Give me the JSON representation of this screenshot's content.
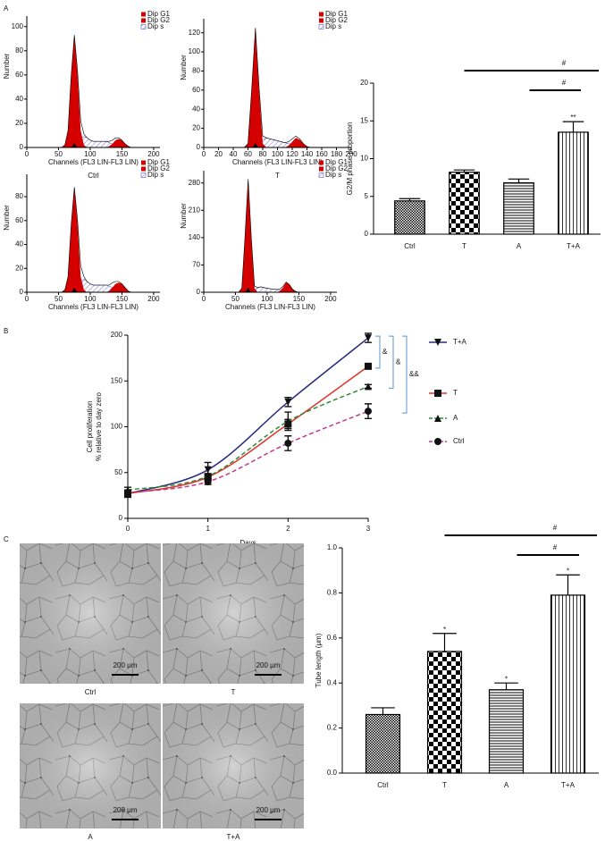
{
  "panel_labels": [
    "A",
    "B",
    "C"
  ],
  "chart_data": [
    {
      "type": "flow_histogram",
      "label": "Ctrl",
      "x_label": "Channels (FL3 LIN-FL3 LIN)",
      "y_label": "Number",
      "x": [
        40,
        45,
        50,
        55,
        60,
        65,
        70,
        75,
        80,
        85,
        90,
        95,
        100,
        105,
        110,
        115,
        120,
        125,
        130,
        135,
        140,
        145,
        150,
        155,
        160,
        165,
        170,
        175,
        180
      ],
      "series": [
        {
          "name": "Dip G1",
          "color": "#d40000",
          "values": [
            0,
            0,
            0,
            0,
            2,
            14,
            60,
            93,
            60,
            14,
            2,
            0,
            0,
            0,
            0,
            0,
            0,
            0,
            0,
            0,
            0,
            0,
            0,
            0,
            0,
            0,
            0,
            0,
            0
          ]
        },
        {
          "name": "Dip G2",
          "color": "#d40000",
          "values": [
            0,
            0,
            0,
            0,
            0,
            0,
            0,
            0,
            0,
            0,
            0,
            0,
            0,
            0,
            0,
            0,
            0,
            0,
            1,
            3,
            6,
            7,
            6,
            3,
            1,
            0,
            0,
            0,
            0
          ]
        },
        {
          "name": "Dip s",
          "color": "#3c3ccf",
          "fill": "hatch",
          "values": [
            0,
            0,
            0,
            0,
            0,
            0,
            0,
            0,
            3,
            8,
            9,
            8,
            6,
            5,
            5,
            5,
            5,
            5,
            4,
            3,
            2,
            1,
            0,
            0,
            0,
            0,
            0,
            0,
            0
          ]
        }
      ],
      "xlim": [
        0,
        210
      ],
      "xticks": [
        0,
        50,
        100,
        150,
        200
      ],
      "ylim": [
        0,
        105
      ],
      "yticks": [
        0,
        20,
        40,
        60,
        80,
        100
      ]
    },
    {
      "type": "flow_histogram",
      "label": "T",
      "x_label": "Channels (FL3 LIN-FL3 LIN)",
      "y_label": "Number",
      "x": [
        40,
        45,
        50,
        55,
        60,
        65,
        70,
        75,
        80,
        85,
        90,
        95,
        100,
        105,
        110,
        115,
        120,
        125,
        130,
        135,
        140,
        145,
        150,
        155,
        160,
        165,
        170,
        175,
        180
      ],
      "series": [
        {
          "name": "Dip G1",
          "color": "#d40000",
          "values": [
            0,
            0,
            0,
            0,
            4,
            60,
            125,
            60,
            4,
            0,
            0,
            0,
            0,
            0,
            0,
            0,
            0,
            0,
            0,
            0,
            0,
            0,
            0,
            0,
            0,
            0,
            0,
            0,
            0
          ]
        },
        {
          "name": "Dip G2",
          "color": "#d40000",
          "values": [
            0,
            0,
            0,
            0,
            0,
            0,
            0,
            0,
            0,
            0,
            0,
            0,
            0,
            0,
            0,
            2,
            6,
            10,
            8,
            4,
            1,
            0,
            0,
            0,
            0,
            0,
            0,
            0,
            0
          ]
        },
        {
          "name": "Dip s",
          "color": "#3c3ccf",
          "fill": "hatch",
          "values": [
            0,
            0,
            0,
            0,
            0,
            0,
            0,
            3,
            8,
            10,
            9,
            8,
            7,
            6,
            5,
            4,
            3,
            2,
            1,
            0,
            0,
            0,
            0,
            0,
            0,
            0,
            0,
            0,
            0
          ]
        }
      ],
      "xlim": [
        0,
        200
      ],
      "xticks": [
        0,
        20,
        40,
        60,
        80,
        100,
        120,
        140,
        160,
        180,
        200
      ],
      "ylim": [
        0,
        130
      ],
      "yticks": [
        0,
        20,
        40,
        60,
        80,
        100,
        120
      ]
    },
    {
      "type": "flow_histogram",
      "x_label": "Channels (FL3 LIN-FL3 LIN)",
      "y_label": "Number",
      "x": [
        40,
        45,
        50,
        55,
        60,
        65,
        70,
        75,
        80,
        85,
        90,
        95,
        100,
        105,
        110,
        115,
        120,
        125,
        130,
        135,
        140,
        145,
        150,
        155,
        160,
        165,
        170,
        175,
        180
      ],
      "series": [
        {
          "name": "Dip G1",
          "color": "#d40000",
          "values": [
            0,
            0,
            0,
            0,
            2,
            13,
            57,
            88,
            57,
            13,
            2,
            0,
            0,
            0,
            0,
            0,
            0,
            0,
            0,
            0,
            0,
            0,
            0,
            0,
            0,
            0,
            0,
            0,
            0
          ]
        },
        {
          "name": "Dip G2",
          "color": "#d40000",
          "values": [
            0,
            0,
            0,
            0,
            0,
            0,
            0,
            0,
            0,
            0,
            0,
            0,
            0,
            0,
            0,
            0,
            0,
            0,
            1,
            4,
            7,
            8,
            7,
            4,
            1,
            0,
            0,
            0,
            0
          ]
        },
        {
          "name": "Dip s",
          "color": "#3c3ccf",
          "fill": "hatch",
          "values": [
            0,
            0,
            0,
            0,
            0,
            0,
            0,
            0,
            3,
            9,
            11,
            9,
            7,
            6,
            6,
            6,
            6,
            6,
            5,
            4,
            2,
            1,
            0,
            0,
            0,
            0,
            0,
            0,
            0
          ]
        }
      ],
      "xlim": [
        0,
        210
      ],
      "xticks": [
        0,
        50,
        100,
        150,
        200
      ],
      "ylim": [
        0,
        95
      ],
      "yticks": [
        0,
        20,
        40,
        60,
        80
      ]
    },
    {
      "type": "flow_histogram",
      "x_label": "Channels (FL3 LIN-FL3 LIN)",
      "y_label": "Number",
      "x": [
        40,
        45,
        50,
        55,
        60,
        65,
        70,
        75,
        80,
        85,
        90,
        95,
        100,
        105,
        110,
        115,
        120,
        125,
        130,
        135,
        140,
        145,
        150,
        155,
        160,
        165,
        170,
        175,
        180
      ],
      "series": [
        {
          "name": "Dip G1",
          "color": "#d40000",
          "values": [
            0,
            0,
            0,
            0,
            10,
            140,
            290,
            140,
            10,
            0,
            0,
            0,
            0,
            0,
            0,
            0,
            0,
            0,
            0,
            0,
            0,
            0,
            0,
            0,
            0,
            0,
            0,
            0,
            0
          ]
        },
        {
          "name": "Dip G2",
          "color": "#d40000",
          "values": [
            0,
            0,
            0,
            0,
            0,
            0,
            0,
            0,
            0,
            0,
            0,
            0,
            0,
            0,
            0,
            0,
            3,
            12,
            25,
            20,
            8,
            2,
            0,
            0,
            0,
            0,
            0,
            0,
            0
          ]
        },
        {
          "name": "Dip s",
          "color": "#3c3ccf",
          "fill": "hatch",
          "values": [
            0,
            0,
            0,
            0,
            0,
            0,
            0,
            0,
            6,
            12,
            14,
            12,
            10,
            9,
            8,
            7,
            5,
            3,
            1,
            0,
            0,
            0,
            0,
            0,
            0,
            0,
            0,
            0,
            0
          ]
        }
      ],
      "xlim": [
        0,
        210
      ],
      "xticks": [
        0,
        50,
        100,
        150,
        200
      ],
      "ylim": [
        0,
        300
      ],
      "yticks": [
        0,
        70,
        140,
        210,
        280
      ]
    },
    {
      "type": "bar",
      "categories": [
        "Ctrl",
        "T",
        "A",
        "T+A"
      ],
      "values": [
        4.4,
        8.2,
        6.8,
        13.5
      ],
      "errors": [
        0.3,
        0.3,
        0.5,
        1.4
      ],
      "patterns": [
        "fine-check",
        "check",
        "hlines",
        "vlines"
      ],
      "y_label": "G2/M phase proportion",
      "ylim": [
        0,
        20
      ],
      "yticks": [
        0,
        5,
        10,
        15,
        20
      ],
      "bracket_labels": [
        "#",
        "#"
      ],
      "bar_labels": [
        null,
        null,
        null,
        "**"
      ]
    },
    {
      "type": "line",
      "x": [
        0,
        1,
        2,
        3
      ],
      "xlim": [
        0,
        3
      ],
      "xticks": [
        0,
        1,
        2,
        3
      ],
      "ylim": [
        0,
        200
      ],
      "yticks": [
        0,
        50,
        100,
        150,
        200
      ],
      "x_label": "Days",
      "y_label": [
        "Cell proliferation",
        "% relative to day zero"
      ],
      "series": [
        {
          "name": "T+A",
          "color": "#2b2a7a",
          "dashed": false,
          "marker": "triangle-down",
          "values": [
            27,
            53,
            127,
            197
          ],
          "errors": [
            3,
            8,
            5,
            5
          ]
        },
        {
          "name": "T",
          "color": "#e0352a",
          "dashed": false,
          "marker": "square",
          "values": [
            27,
            45,
            103,
            166
          ],
          "errors": [
            4,
            3,
            5,
            2
          ]
        },
        {
          "name": "A",
          "color": "#2e8b3a",
          "dashed": true,
          "marker": "triangle-up",
          "values": [
            31,
            46,
            106,
            144
          ],
          "errors": [
            3,
            3,
            10,
            2
          ]
        },
        {
          "name": "Ctrl",
          "color": "#c2388c",
          "dashed": true,
          "marker": "circle",
          "values": [
            28,
            40,
            82,
            117
          ],
          "errors": [
            3,
            3,
            8,
            8
          ]
        }
      ],
      "bracket_labels": [
        "&",
        "&",
        "&&"
      ]
    },
    {
      "type": "bar",
      "categories": [
        "Ctrl",
        "T",
        "A",
        "T+A"
      ],
      "values": [
        0.26,
        0.54,
        0.37,
        0.79
      ],
      "errors": [
        0.03,
        0.08,
        0.03,
        0.09
      ],
      "patterns": [
        "fine-check",
        "check",
        "hlines",
        "vlines"
      ],
      "y_label": "Tube length (μm)",
      "ylim": [
        0,
        1
      ],
      "yticks": [
        {
          "value": 0,
          "label": "0.0"
        },
        0.2,
        0.4,
        0.6,
        0.8,
        {
          "value": 1,
          "label": "1.0"
        }
      ],
      "bracket_labels": [
        "#",
        "#"
      ],
      "bar_labels": [
        null,
        "*",
        "*",
        "*"
      ]
    }
  ],
  "micrographs": [
    {
      "label": "Ctrl",
      "scale_bar": "200 μm"
    },
    {
      "label": "T",
      "scale_bar": "200 μm"
    },
    {
      "label": "A",
      "scale_bar": "200 μm"
    },
    {
      "label": "T+A",
      "scale_bar": "200 μm"
    }
  ]
}
